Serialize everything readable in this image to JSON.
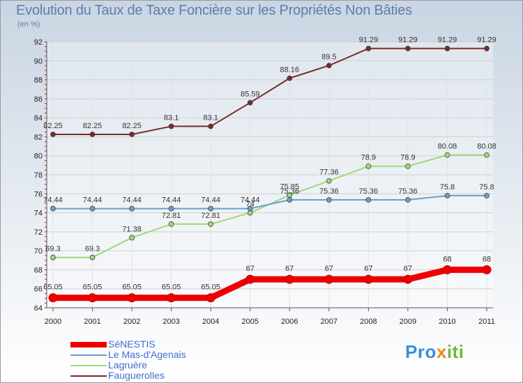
{
  "chart_data": {
    "type": "line",
    "title": "Evolution du Taux de Taxe Foncière sur les Propriétés Non Bâties",
    "unit_label": "(en %)",
    "x": [
      "2000",
      "2001",
      "2002",
      "2003",
      "2004",
      "2005",
      "2006",
      "2007",
      "2008",
      "2009",
      "2010",
      "2011"
    ],
    "ylim": [
      64,
      92
    ],
    "yticks": [
      64,
      66,
      68,
      70,
      72,
      74,
      76,
      78,
      80,
      82,
      84,
      86,
      88,
      90,
      92
    ],
    "grid": true,
    "legend_position": "bottom-left",
    "series": [
      {
        "name": "SéNESTIS",
        "color": "#ee0000",
        "values": [
          65.05,
          65.05,
          65.05,
          65.05,
          65.05,
          67,
          67,
          67,
          67,
          67,
          68,
          68
        ],
        "labels": [
          "65.05",
          "65.05",
          "65.05",
          "65.05",
          "65.05",
          "67",
          "67",
          "67",
          "67",
          "67",
          "68",
          "68"
        ]
      },
      {
        "name": "Le Mas-d'Agenais",
        "color": "#6a9fc9",
        "values": [
          74.44,
          74.44,
          74.44,
          74.44,
          74.44,
          74.44,
          75.36,
          75.36,
          75.36,
          75.36,
          75.8,
          75.8
        ],
        "labels": [
          "74.44",
          "74.44",
          "74.44",
          "74.44",
          "74.44",
          "74.44",
          "75.36",
          "75.36",
          "75.36",
          "75.36",
          "75.8",
          "75.8"
        ]
      },
      {
        "name": "Lagruère",
        "color": "#9fd87a",
        "values": [
          69.3,
          69.3,
          71.38,
          72.81,
          72.81,
          74,
          75.85,
          77.36,
          78.9,
          78.9,
          80.08,
          80.08
        ],
        "labels": [
          "69.3",
          "69.3",
          "71.38",
          "72.81",
          "72.81",
          "74",
          "75.85",
          "77.36",
          "78.9",
          "78.9",
          "80.08",
          "80.08"
        ]
      },
      {
        "name": "Fauguerolles",
        "color": "#7a2a2a",
        "values": [
          82.25,
          82.25,
          82.25,
          83.1,
          83.1,
          85.59,
          88.16,
          89.5,
          91.29,
          91.29,
          91.29,
          91.29
        ],
        "labels": [
          "82.25",
          "82.25",
          "82.25",
          "83.1",
          "83.1",
          "85.59",
          "88.16",
          "89.5",
          "91.29",
          "91.29",
          "91.29",
          "91.29"
        ]
      }
    ]
  },
  "logo": {
    "part1": "Pro",
    "part2": "x",
    "part3": "iti"
  }
}
